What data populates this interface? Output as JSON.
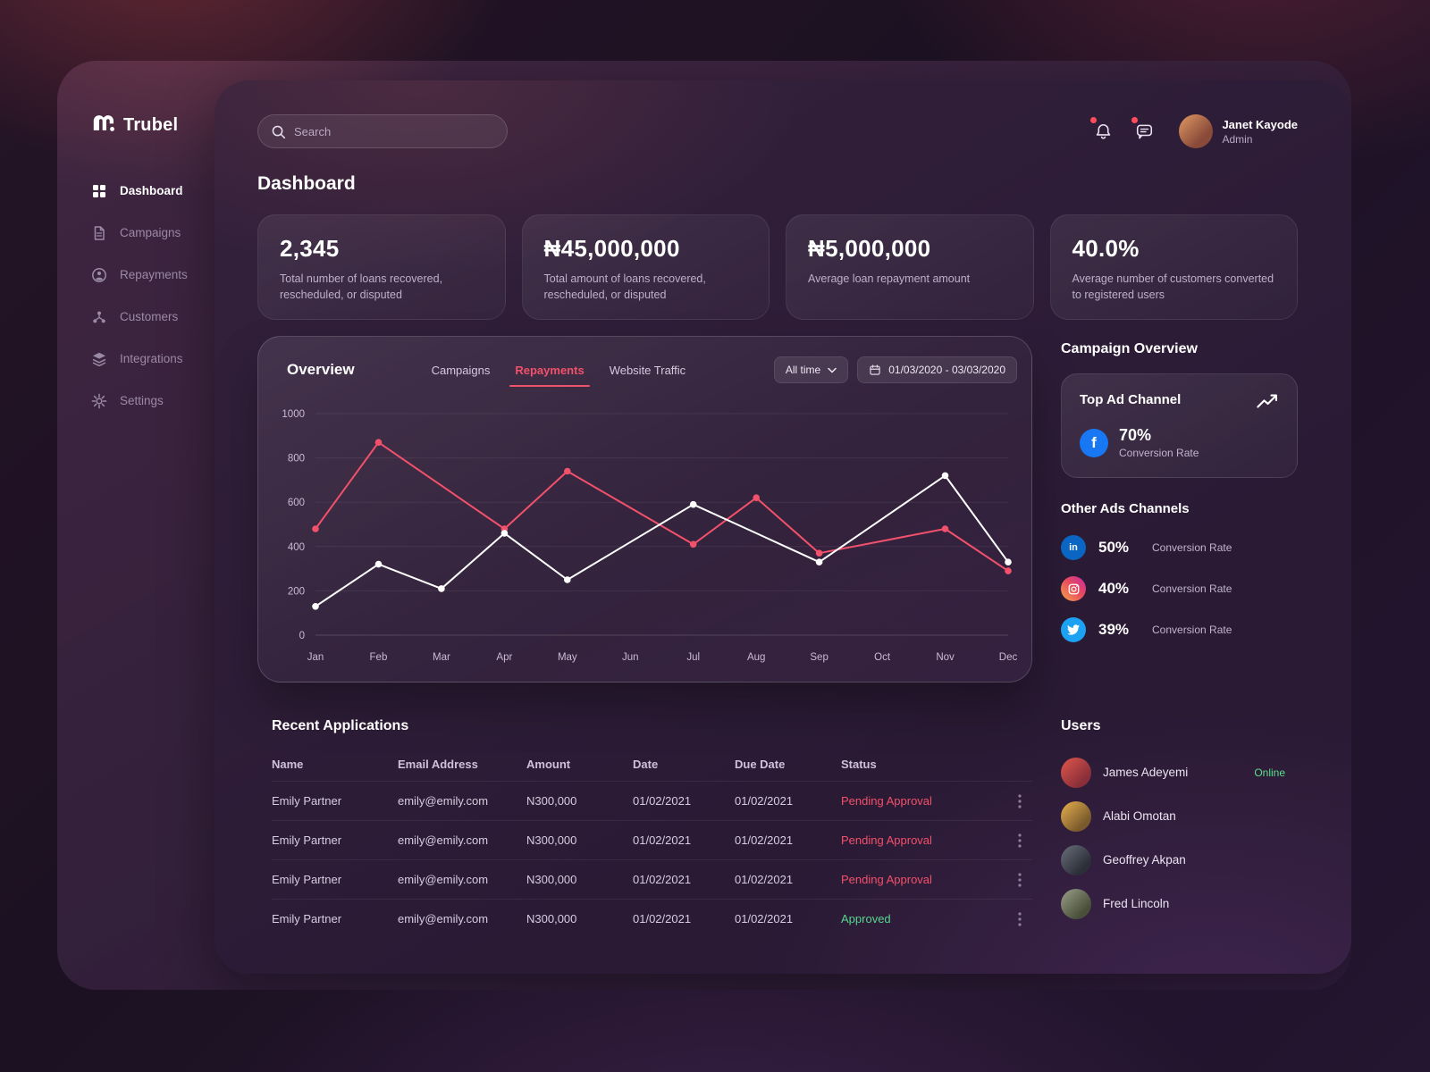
{
  "app": {
    "brand": "Trubel"
  },
  "sidebar": {
    "items": [
      {
        "label": "Dashboard",
        "icon": "dashboard-grid",
        "active": true
      },
      {
        "label": "Campaigns",
        "icon": "campaigns-doc",
        "active": false
      },
      {
        "label": "Repayments",
        "icon": "repayments-user",
        "active": false
      },
      {
        "label": "Customers",
        "icon": "customers-people",
        "active": false
      },
      {
        "label": "Integrations",
        "icon": "integrations-layers",
        "active": false
      },
      {
        "label": "Settings",
        "icon": "settings-gear",
        "active": false
      }
    ]
  },
  "header": {
    "search_placeholder": "Search",
    "user": {
      "name": "Janet Kayode",
      "role": "Admin"
    }
  },
  "page_title": "Dashboard",
  "stats": [
    {
      "value": "2,345",
      "desc": "Total number of loans recovered, rescheduled, or disputed"
    },
    {
      "value": "₦45,000,000",
      "desc": "Total amount of loans recovered, rescheduled, or disputed"
    },
    {
      "value": "₦5,000,000",
      "desc": "Average loan repayment amount"
    },
    {
      "value": "40.0%",
      "desc": "Average number of customers converted to registered users"
    }
  ],
  "overview": {
    "title": "Overview",
    "tabs": [
      {
        "label": "Campaigns",
        "active": false
      },
      {
        "label": "Repayments",
        "active": true
      },
      {
        "label": "Website Traffic",
        "active": false
      }
    ],
    "time_filter": "All time",
    "date_range": "01/03/2020 - 03/03/2020"
  },
  "chart_data": {
    "type": "line",
    "title": "Overview - Repayments",
    "categories": [
      "Jan",
      "Feb",
      "Mar",
      "Apr",
      "May",
      "Jun",
      "Jul",
      "Aug",
      "Sep",
      "Oct",
      "Nov",
      "Dec"
    ],
    "ylim": [
      0,
      1000
    ],
    "yticks": [
      0,
      200,
      400,
      600,
      800,
      1000
    ],
    "grid": true,
    "legend_position": "none",
    "series": [
      {
        "name": "red-series",
        "color": "#f2516b",
        "values": [
          480,
          870,
          675,
          480,
          740,
          575,
          410,
          620,
          370,
          425,
          480,
          290
        ],
        "markers": [
          1,
          1,
          0,
          1,
          1,
          0,
          1,
          1,
          1,
          0,
          1,
          1
        ]
      },
      {
        "name": "white-series",
        "color": "#ffffff",
        "values": [
          130,
          320,
          210,
          460,
          250,
          420,
          590,
          460,
          330,
          525,
          720,
          330
        ],
        "markers": [
          1,
          1,
          1,
          1,
          1,
          0,
          1,
          0,
          1,
          0,
          1,
          1
        ]
      }
    ]
  },
  "campaign_overview": {
    "title": "Campaign Overview",
    "top_card": {
      "title": "Top Ad Channel",
      "channel": "facebook",
      "value": "70%",
      "label": "Conversion Rate"
    },
    "other_title": "Other Ads Channels",
    "channels": [
      {
        "name": "linkedin",
        "value": "50%",
        "label": "Conversion Rate"
      },
      {
        "name": "instagram",
        "value": "40%",
        "label": "Conversion Rate"
      },
      {
        "name": "twitter",
        "value": "39%",
        "label": "Conversion Rate"
      }
    ]
  },
  "recent_applications": {
    "title": "Recent Applications",
    "columns": [
      "Name",
      "Email Address",
      "Amount",
      "Date",
      "Due Date",
      "Status"
    ],
    "rows": [
      {
        "name": "Emily Partner",
        "email": "emily@emily.com",
        "amount": "N300,000",
        "date": "01/02/2021",
        "due_date": "01/02/2021",
        "status": "Pending Approval",
        "status_type": "pending"
      },
      {
        "name": "Emily Partner",
        "email": "emily@emily.com",
        "amount": "N300,000",
        "date": "01/02/2021",
        "due_date": "01/02/2021",
        "status": "Pending Approval",
        "status_type": "pending"
      },
      {
        "name": "Emily Partner",
        "email": "emily@emily.com",
        "amount": "N300,000",
        "date": "01/02/2021",
        "due_date": "01/02/2021",
        "status": "Pending Approval",
        "status_type": "pending"
      },
      {
        "name": "Emily Partner",
        "email": "emily@emily.com",
        "amount": "N300,000",
        "date": "01/02/2021",
        "due_date": "01/02/2021",
        "status": "Approved",
        "status_type": "approved"
      }
    ]
  },
  "users_panel": {
    "title": "Users",
    "users": [
      {
        "name": "James Adeyemi",
        "status": "Online"
      },
      {
        "name": "Alabi Omotan",
        "status": ""
      },
      {
        "name": "Geoffrey Akpan",
        "status": ""
      },
      {
        "name": "Fred Lincoln",
        "status": ""
      }
    ]
  },
  "colors": {
    "accent": "#f2516b",
    "success": "#57d68d",
    "online": "#58e08a",
    "facebook": "#1877f2",
    "linkedin": "#0a66c2",
    "twitter": "#1da1f2",
    "notification_dot": "#ff4d5e"
  }
}
